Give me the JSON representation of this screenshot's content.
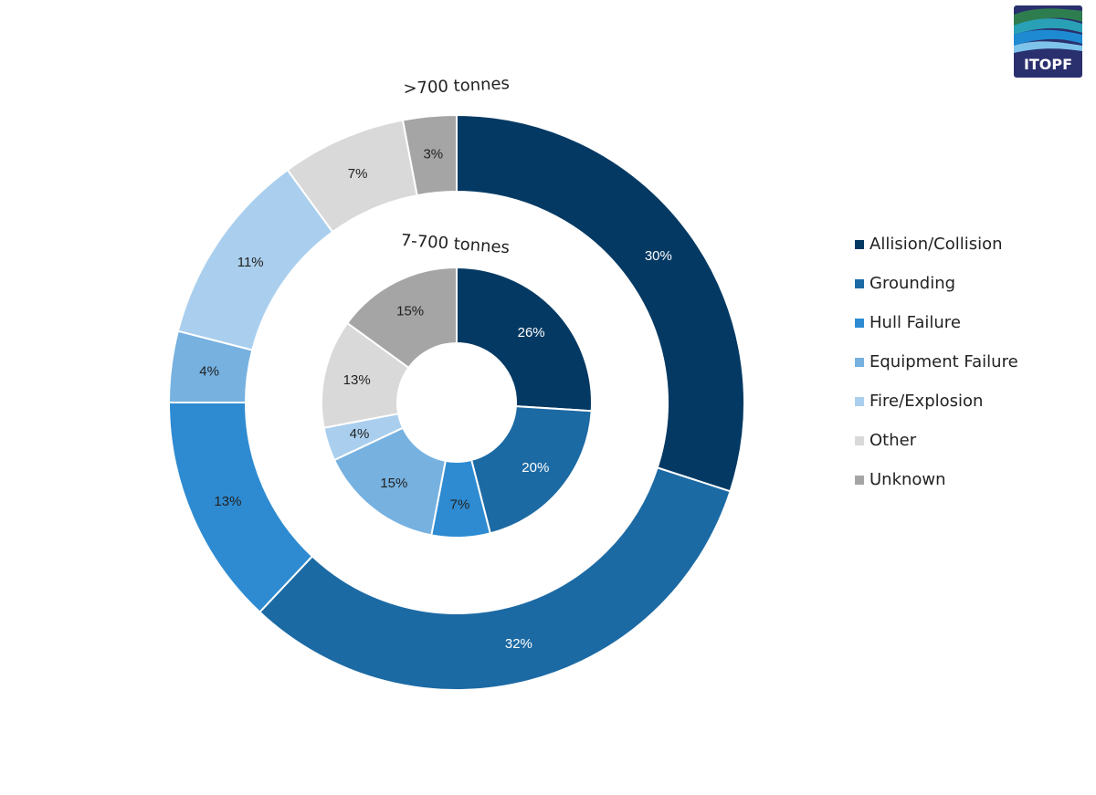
{
  "logo": {
    "text": "ITOPF"
  },
  "colors": {
    "Allision/Collision": "#043963",
    "Grounding": "#1c6aa4",
    "Hull Failure": "#2e8bd1",
    "Equipment Failure": "#76b1e0",
    "Fire/Explosion": "#aacfee",
    "Other": "#d9d9d9",
    "Unknown": "#a5a5a5"
  },
  "chart_data": {
    "type": "pie",
    "variant": "nested-donut",
    "categories": [
      "Allision/Collision",
      "Grounding",
      "Hull Failure",
      "Equipment Failure",
      "Fire/Explosion",
      "Other",
      "Unknown"
    ],
    "series": [
      {
        "name": ">700 tonnes",
        "ring": "outer",
        "values": [
          30,
          32,
          13,
          4,
          11,
          7,
          3
        ],
        "labels": [
          "30%",
          "32%",
          "13%",
          "4%",
          "11%",
          "7%",
          "3%"
        ]
      },
      {
        "name": "7-700 tonnes",
        "ring": "inner",
        "values": [
          26,
          20,
          7,
          15,
          4,
          13,
          15
        ],
        "labels": [
          "26%",
          "20%",
          "7%",
          "15%",
          "4%",
          "13%",
          "15%"
        ]
      }
    ],
    "legend_position": "right"
  }
}
